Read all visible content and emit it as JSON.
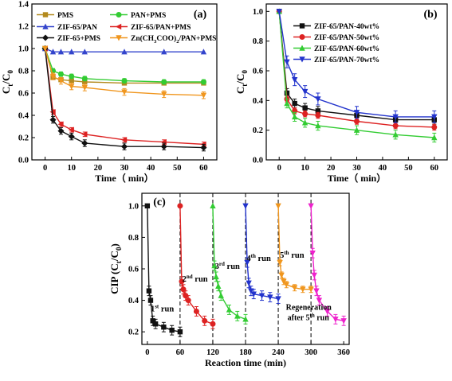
{
  "chart_data": [
    {
      "panel_label": "(a)",
      "type": "line",
      "xlabel_main": "Time",
      "xlabel_unit": "min",
      "ylabel": {
        "base": "C",
        "sub1": "t",
        "mid": "/C",
        "sub2": "0"
      },
      "xlim": [
        -5,
        65
      ],
      "ylim": [
        0.0,
        1.4
      ],
      "xticks": [
        "0",
        "10",
        "20",
        "30",
        "40",
        "50",
        "60"
      ],
      "yticks": [
        "0.0",
        "0.2",
        "0.4",
        "0.6",
        "0.8",
        "1.0",
        "1.2",
        "1.4"
      ],
      "legend_position": "top",
      "series": [
        {
          "name": "PMS",
          "color": "#b38a1e",
          "marker": "square",
          "x": [
            0,
            3,
            6,
            10,
            15,
            30,
            45,
            60
          ],
          "values": [
            1.0,
            0.74,
            0.72,
            0.71,
            0.7,
            0.69,
            0.69,
            0.69
          ],
          "err": 0
        },
        {
          "name": "PAN+PMS",
          "color": "#33cc33",
          "marker": "circle",
          "x": [
            0,
            3,
            6,
            10,
            15,
            30,
            45,
            60
          ],
          "values": [
            1.0,
            0.8,
            0.77,
            0.75,
            0.73,
            0.71,
            0.7,
            0.7
          ],
          "err": 0.02
        },
        {
          "name": "ZIF-65/PAN",
          "color": "#3344cc",
          "marker": "triangle",
          "x": [
            0,
            3,
            6,
            10,
            15,
            30,
            45,
            60
          ],
          "values": [
            1.0,
            0.97,
            0.97,
            0.97,
            0.97,
            0.97,
            0.97,
            0.97
          ],
          "err": 0
        },
        {
          "name": "ZIF-65/PAN+PMS",
          "color": "#dd2222",
          "marker": "left",
          "x": [
            0,
            3,
            6,
            10,
            15,
            30,
            45,
            60
          ],
          "values": [
            1.0,
            0.43,
            0.32,
            0.27,
            0.23,
            0.18,
            0.16,
            0.14
          ],
          "err": 0.02
        },
        {
          "name": "ZIF-65+PMS",
          "color": "#111111",
          "marker": "diamond",
          "x": [
            0,
            3,
            6,
            10,
            15,
            30,
            45,
            60
          ],
          "values": [
            1.0,
            0.36,
            0.26,
            0.21,
            0.15,
            0.12,
            0.12,
            0.11
          ],
          "err": 0.03
        },
        {
          "name": "Zn(CH3COO)2/PAN+PMS",
          "color": "#f0961e",
          "marker": "tridown",
          "x": [
            0,
            3,
            6,
            10,
            15,
            30,
            45,
            60
          ],
          "values": [
            1.0,
            0.75,
            0.71,
            0.66,
            0.65,
            0.61,
            0.59,
            0.58
          ],
          "err": 0.03
        }
      ]
    },
    {
      "panel_label": "(b)",
      "type": "line",
      "xlabel_main": "Time",
      "xlabel_unit": "min",
      "ylabel": {
        "base": "C",
        "sub1": "t",
        "mid": "/C",
        "sub2": "0"
      },
      "xlim": [
        -5,
        65
      ],
      "ylim": [
        0.0,
        1.05
      ],
      "xticks": [
        "0",
        "10",
        "20",
        "30",
        "40",
        "50",
        "60"
      ],
      "yticks": [
        "0.0",
        "0.2",
        "0.4",
        "0.6",
        "0.8",
        "1.0"
      ],
      "legend_position": "top-right",
      "series": [
        {
          "name": "ZIF-65/PAN-40wt%",
          "color": "#111111",
          "marker": "square",
          "x": [
            0,
            3,
            6,
            10,
            15,
            30,
            45,
            60
          ],
          "values": [
            1.0,
            0.45,
            0.38,
            0.35,
            0.33,
            0.3,
            0.27,
            0.27
          ],
          "err": 0.03
        },
        {
          "name": "ZIF-65/PAN-50wt%",
          "color": "#dd2222",
          "marker": "circle",
          "x": [
            0,
            3,
            6,
            10,
            15,
            30,
            45,
            60
          ],
          "values": [
            1.0,
            0.41,
            0.33,
            0.31,
            0.3,
            0.26,
            0.23,
            0.22
          ],
          "err": 0.02
        },
        {
          "name": "ZIF-65/PAN-60wt%",
          "color": "#33cc33",
          "marker": "triangle",
          "x": [
            0,
            3,
            6,
            10,
            15,
            30,
            45,
            60
          ],
          "values": [
            1.0,
            0.38,
            0.29,
            0.25,
            0.23,
            0.2,
            0.17,
            0.15
          ],
          "err": 0.03
        },
        {
          "name": "ZIF-65/PAN-70wt%",
          "color": "#2233cc",
          "marker": "tridown",
          "x": [
            0,
            3,
            6,
            10,
            15,
            30,
            45,
            60
          ],
          "values": [
            1.0,
            0.66,
            0.54,
            0.46,
            0.41,
            0.32,
            0.29,
            0.29
          ],
          "err": 0.04
        }
      ]
    },
    {
      "panel_label": "(c)",
      "type": "line",
      "xlabel": "Reaction time (min)",
      "ylabel": {
        "base": "CIP (C",
        "sub1": "t",
        "mid": "/C",
        "sub2": "0",
        "end": ")"
      },
      "xlim": [
        -10,
        370
      ],
      "ylim": [
        0.12,
        1.08
      ],
      "xticks": [
        "0",
        "60",
        "120",
        "180",
        "240",
        "300",
        "360"
      ],
      "yticks": [
        "0.2",
        "0.4",
        "0.6",
        "0.8",
        "1.0"
      ],
      "run_boundaries": [
        60,
        120,
        180,
        240,
        300
      ],
      "annotations": [
        {
          "base": "1",
          "sup": "st",
          "rest": " run",
          "x": 6,
          "y": 0.33
        },
        {
          "base": "2",
          "sup": "nd",
          "rest": " run",
          "x": 64,
          "y": 0.52
        },
        {
          "base": "3",
          "sup": "rd",
          "rest": " run",
          "x": 124,
          "y": 0.6
        },
        {
          "base": "4",
          "sup": "th",
          "rest": " run",
          "x": 182,
          "y": 0.65
        },
        {
          "base": "5",
          "sup": "th",
          "rest": " run",
          "x": 243,
          "y": 0.67
        }
      ],
      "regeneration_note": {
        "line1": "Regeneration",
        "line2_base": "after 5",
        "line2_sup": "th",
        "line2_rest": " run",
        "x": 254,
        "y": 0.34
      },
      "series": [
        {
          "name": "1st run",
          "color": "#111111",
          "marker": "square",
          "x": [
            0,
            3,
            6,
            10,
            15,
            30,
            45,
            60
          ],
          "values": [
            1.0,
            0.46,
            0.4,
            0.27,
            0.25,
            0.23,
            0.21,
            0.2
          ],
          "err": 0.03
        },
        {
          "name": "2nd run",
          "color": "#dd2222",
          "marker": "circle",
          "x": [
            60,
            63,
            66,
            70,
            75,
            90,
            105,
            120
          ],
          "values": [
            1.0,
            0.52,
            0.47,
            0.43,
            0.4,
            0.33,
            0.27,
            0.25
          ],
          "err": 0.03
        },
        {
          "name": "3rd run",
          "color": "#33cc33",
          "marker": "triangle",
          "x": [
            120,
            123,
            126,
            130,
            135,
            150,
            165,
            180
          ],
          "values": [
            1.0,
            0.62,
            0.55,
            0.49,
            0.43,
            0.34,
            0.3,
            0.28
          ],
          "err": 0.03
        },
        {
          "name": "4th run",
          "color": "#2233cc",
          "marker": "tridown",
          "x": [
            180,
            183,
            186,
            190,
            195,
            210,
            225,
            240
          ],
          "values": [
            1.0,
            0.64,
            0.51,
            0.46,
            0.44,
            0.43,
            0.42,
            0.41
          ],
          "err": 0.03
        },
        {
          "name": "5th run",
          "color": "#f0961e",
          "marker": "tridown",
          "x": [
            240,
            243,
            246,
            250,
            255,
            270,
            285,
            300
          ],
          "values": [
            1.0,
            0.64,
            0.56,
            0.52,
            0.5,
            0.48,
            0.47,
            0.47
          ],
          "err": 0.02
        },
        {
          "name": "Regeneration",
          "color": "#ee22cc",
          "marker": "tridown",
          "x": [
            300,
            303,
            306,
            310,
            315,
            330,
            345,
            360
          ],
          "values": [
            1.0,
            0.7,
            0.56,
            0.46,
            0.4,
            0.33,
            0.28,
            0.27
          ],
          "err": 0.03
        }
      ]
    }
  ]
}
